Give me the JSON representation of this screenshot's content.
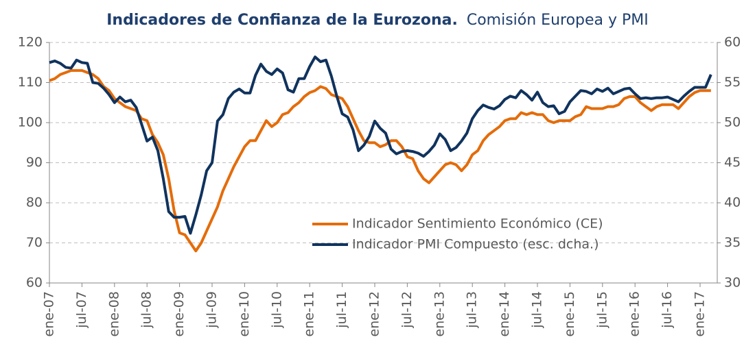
{
  "chart_data": {
    "type": "line",
    "title": "Indicadores de Confianza de la Eurozona.",
    "subtitle": "Comisión Europea y PMI",
    "categories": [
      "ene-07",
      null,
      null,
      null,
      null,
      null,
      "jul-07",
      null,
      null,
      null,
      null,
      null,
      "ene-08",
      null,
      null,
      null,
      null,
      null,
      "jul-08",
      null,
      null,
      null,
      null,
      null,
      "ene-09",
      null,
      null,
      null,
      null,
      null,
      "jul-09",
      null,
      null,
      null,
      null,
      null,
      "ene-10",
      null,
      null,
      null,
      null,
      null,
      "jul-10",
      null,
      null,
      null,
      null,
      null,
      "ene-11",
      null,
      null,
      null,
      null,
      null,
      "jul-11",
      null,
      null,
      null,
      null,
      null,
      "ene-12",
      null,
      null,
      null,
      null,
      null,
      "jul-12",
      null,
      null,
      null,
      null,
      null,
      "ene-13",
      null,
      null,
      null,
      null,
      null,
      "jul-13",
      null,
      null,
      null,
      null,
      null,
      "ene-14",
      null,
      null,
      null,
      null,
      null,
      "jul-14",
      null,
      null,
      null,
      null,
      null,
      "ene-15",
      null,
      null,
      null,
      null,
      null,
      "jul-15",
      null,
      null,
      null,
      null,
      null,
      "ene-16",
      null,
      null,
      null,
      null,
      null,
      "jul-16",
      null,
      null,
      null,
      null,
      null,
      "ene-17",
      null,
      null
    ],
    "series": [
      {
        "name": "Indicador Sentimiento Económico (CE)",
        "color": "#e46c0a",
        "values": [
          110.5,
          111,
          112,
          112.5,
          113,
          113,
          113,
          112.5,
          112,
          111,
          109,
          108,
          106,
          105,
          104,
          103.5,
          103,
          101,
          100.5,
          97,
          95,
          92,
          86,
          78,
          72.5,
          72,
          70,
          68,
          70,
          73,
          76,
          79,
          83,
          86,
          89,
          91.5,
          94,
          95.5,
          95.5,
          98,
          100.5,
          99,
          100,
          102,
          102.5,
          104,
          105,
          106.5,
          107.5,
          108,
          109,
          108.5,
          107,
          106.5,
          106,
          104,
          101,
          98,
          95.5,
          95,
          95,
          94,
          94.5,
          95.5,
          95.5,
          94,
          91.5,
          91,
          88,
          86,
          85,
          86.5,
          88,
          89.5,
          90,
          89.5,
          88,
          89.5,
          92,
          93,
          95.5,
          97,
          98,
          99,
          100.5,
          101,
          101,
          102.5,
          102,
          102.5,
          102,
          102,
          100.5,
          100,
          100.5,
          100.5,
          100.5,
          101.5,
          102,
          104,
          103.5,
          103.5,
          103.5,
          104,
          104,
          104.5,
          106,
          106.5,
          106.5,
          105,
          104,
          103,
          104,
          104.5,
          104.5,
          104.5,
          103.5,
          105,
          106.5,
          107.5,
          108,
          108,
          108
        ]
      },
      {
        "name": "Indicador PMI Compuesto (esc. dcha.)",
        "color": "#10335e",
        "axis": "y2",
        "values": [
          57.5,
          57.7,
          57.4,
          56.9,
          56.8,
          57.8,
          57.5,
          57.4,
          55,
          54.9,
          54.3,
          53.5,
          52.5,
          53.2,
          52.6,
          52.8,
          51.9,
          49.8,
          47.7,
          48.2,
          46.5,
          43,
          38.9,
          38.2,
          38.2,
          38.3,
          36.2,
          38.5,
          41,
          44,
          45,
          50.2,
          51,
          53,
          53.8,
          54.2,
          53.7,
          53.7,
          55.9,
          57.3,
          56.4,
          56,
          56.7,
          56.2,
          54.1,
          53.8,
          55.5,
          55.5,
          57,
          58.2,
          57.6,
          57.8,
          55.8,
          53.3,
          51.1,
          50.7,
          49.1,
          46.5,
          47.2,
          48.3,
          50.2,
          49.3,
          48.7,
          46.7,
          46.1,
          46.4,
          46.5,
          46.4,
          46.2,
          45.8,
          46.4,
          47.2,
          48.6,
          47.9,
          46.5,
          46.9,
          47.7,
          48.7,
          50.5,
          51.5,
          52.2,
          51.9,
          51.7,
          52.1,
          52.9,
          53.3,
          53.1,
          54,
          53.5,
          52.8,
          53.8,
          52.5,
          52,
          52.1,
          51.1,
          51.4,
          52.6,
          53.3,
          54,
          53.9,
          53.6,
          54.2,
          53.9,
          54.3,
          53.6,
          53.9,
          54.2,
          54.3,
          53.6,
          53,
          53.1,
          53,
          53.1,
          53.1,
          53.2,
          52.9,
          52.6,
          53.3,
          53.9,
          54.4,
          54.4,
          54.4,
          56
        ]
      }
    ],
    "ylim": [
      60,
      120
    ],
    "yticks": [
      60,
      70,
      80,
      90,
      100,
      110,
      120
    ],
    "y2lim": [
      30,
      60
    ],
    "y2ticks": [
      30,
      35,
      40,
      45,
      50,
      55,
      60
    ],
    "grid": true,
    "legend": "bottom-center"
  }
}
